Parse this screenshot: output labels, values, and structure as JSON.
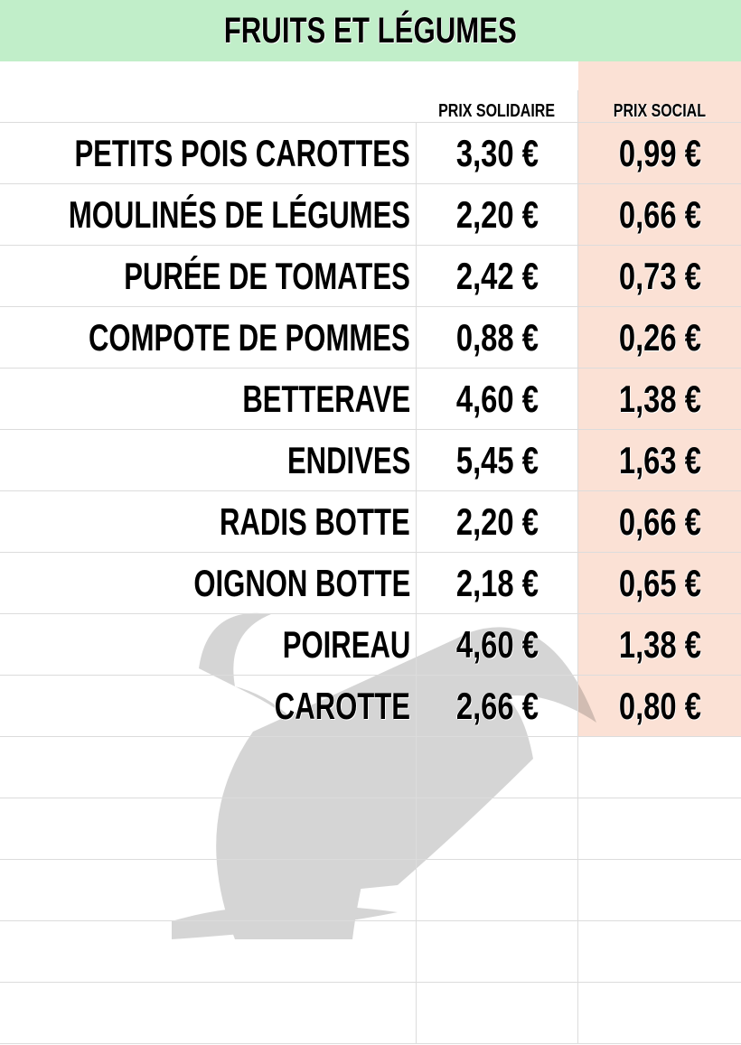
{
  "title": "Fruits et Légumes",
  "columns": {
    "product": "",
    "solidaire": "Prix solidaire",
    "social": "Prix social"
  },
  "colors": {
    "title_bg": "#c1eec9",
    "social_bg": "#fbe1d5",
    "grid": "#dcdcdc"
  },
  "watermark_icon": "corn-icon",
  "rows": [
    {
      "name": "Petits pois carottes",
      "solidaire": "3,30 €",
      "social": "0,99 €"
    },
    {
      "name": "Moulinés de légumes",
      "solidaire": "2,20 €",
      "social": "0,66 €"
    },
    {
      "name": "Purée de tomates",
      "solidaire": "2,42 €",
      "social": "0,73 €"
    },
    {
      "name": "Compote de pommes",
      "solidaire": "0,88 €",
      "social": "0,26 €"
    },
    {
      "name": "Betterave",
      "solidaire": "4,60 €",
      "social": "1,38 €"
    },
    {
      "name": "Endives",
      "solidaire": "5,45 €",
      "social": "1,63 €"
    },
    {
      "name": "Radis botte",
      "solidaire": "2,20 €",
      "social": "0,66 €"
    },
    {
      "name": "Oignon botte",
      "solidaire": "2,18 €",
      "social": "0,65 €"
    },
    {
      "name": "Poireau",
      "solidaire": "4,60 €",
      "social": "1,38 €"
    },
    {
      "name": "Carotte",
      "solidaire": "2,66 €",
      "social": "0,80 €"
    }
  ]
}
